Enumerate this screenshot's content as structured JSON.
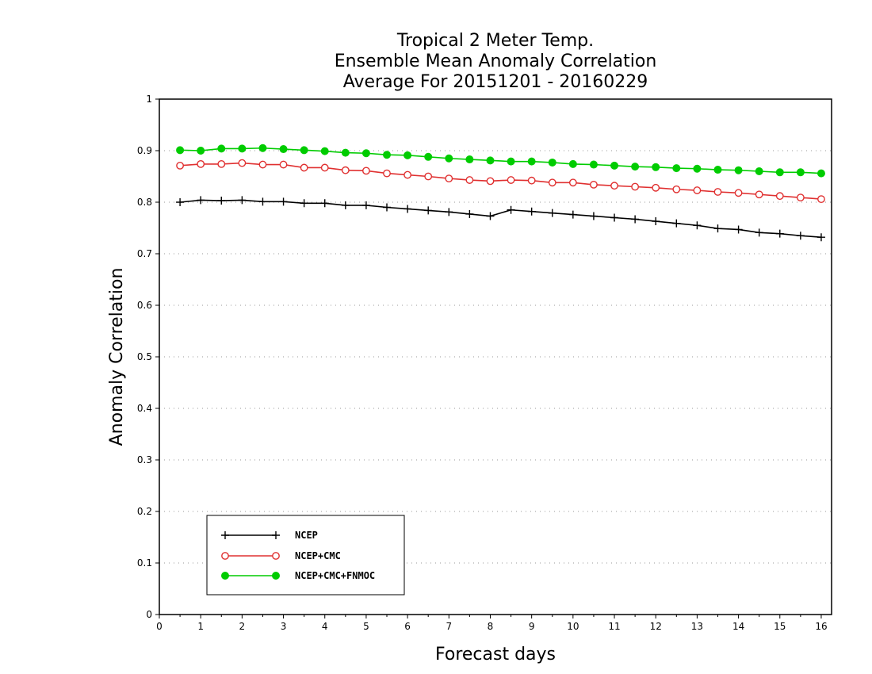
{
  "chart_data": {
    "type": "line",
    "title": [
      "Tropical 2 Meter Temp.",
      "Ensemble Mean Anomaly Correlation",
      "Average For 20151201 - 20160229"
    ],
    "xlabel": "Forecast days",
    "ylabel": "Anomaly Correlation",
    "xlim": [
      0,
      16.25
    ],
    "ylim": [
      0,
      1
    ],
    "xticks": [
      "0",
      "1",
      "2",
      "3",
      "4",
      "5",
      "6",
      "7",
      "8",
      "9",
      "10",
      "11",
      "12",
      "13",
      "14",
      "15",
      "16"
    ],
    "yticks": [
      "0",
      "0.1",
      "0.2",
      "0.3",
      "0.4",
      "0.5",
      "0.6",
      "0.7",
      "0.8",
      "0.9",
      "1"
    ],
    "grid": "horizontal dotted",
    "legend_position": "bottom-left",
    "x": [
      0.5,
      1,
      1.5,
      2,
      2.5,
      3,
      3.5,
      4,
      4.5,
      5,
      5.5,
      6,
      6.5,
      7,
      7.5,
      8,
      8.5,
      9,
      9.5,
      10,
      10.5,
      11,
      11.5,
      12,
      12.5,
      13,
      13.5,
      14,
      14.5,
      15,
      15.5,
      16
    ],
    "series": [
      {
        "name": "NCEP",
        "color": "#000000",
        "marker": "plus",
        "values": [
          0.8,
          0.804,
          0.803,
          0.804,
          0.801,
          0.801,
          0.798,
          0.798,
          0.794,
          0.794,
          0.79,
          0.787,
          0.784,
          0.781,
          0.777,
          0.773,
          0.785,
          0.782,
          0.779,
          0.776,
          0.773,
          0.77,
          0.767,
          0.763,
          0.759,
          0.755,
          0.749,
          0.747,
          0.741,
          0.739,
          0.735,
          0.732
        ]
      },
      {
        "name": "NCEP+CMC",
        "color": "#e03030",
        "marker": "open-circle",
        "values": [
          0.871,
          0.874,
          0.874,
          0.876,
          0.873,
          0.873,
          0.867,
          0.867,
          0.862,
          0.861,
          0.856,
          0.853,
          0.85,
          0.846,
          0.843,
          0.841,
          0.843,
          0.842,
          0.838,
          0.838,
          0.834,
          0.832,
          0.83,
          0.828,
          0.825,
          0.823,
          0.82,
          0.818,
          0.815,
          0.812,
          0.809,
          0.806
        ]
      },
      {
        "name": "NCEP+CMC+FNMOC",
        "color": "#00cc00",
        "marker": "filled-circle",
        "values": [
          0.901,
          0.9,
          0.904,
          0.904,
          0.905,
          0.903,
          0.901,
          0.899,
          0.896,
          0.895,
          0.892,
          0.891,
          0.888,
          0.885,
          0.883,
          0.881,
          0.879,
          0.879,
          0.877,
          0.874,
          0.873,
          0.871,
          0.869,
          0.868,
          0.866,
          0.865,
          0.863,
          0.862,
          0.86,
          0.858,
          0.858,
          0.856
        ]
      }
    ]
  }
}
